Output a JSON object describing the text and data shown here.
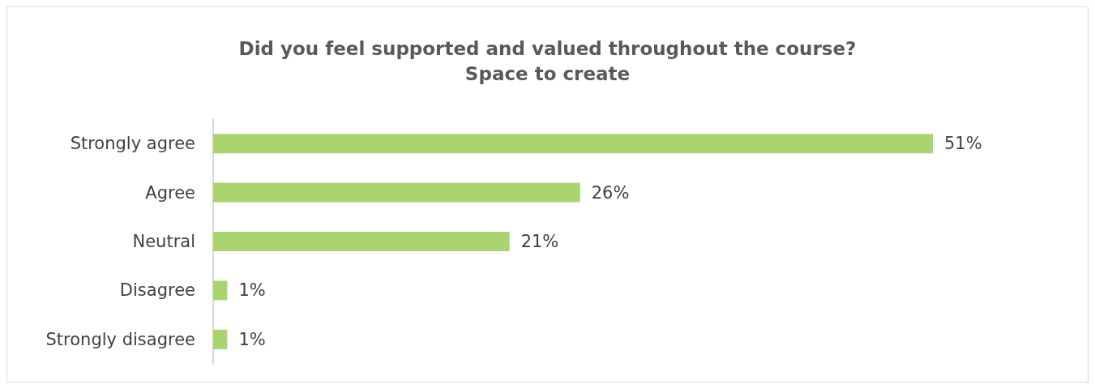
{
  "chart_data": {
    "type": "bar",
    "orientation": "horizontal",
    "title": "Did you feel supported and valued throughout the course?",
    "subtitle": "Space to create",
    "categories": [
      "Strongly agree",
      "Agree",
      "Neutral",
      "Disagree",
      "Strongly disagree"
    ],
    "values": [
      51,
      26,
      21,
      1,
      1
    ],
    "value_labels": [
      "51%",
      "26%",
      "21%",
      "1%",
      "1%"
    ],
    "color": "#a9d46f",
    "tick_labels": "y"
  }
}
